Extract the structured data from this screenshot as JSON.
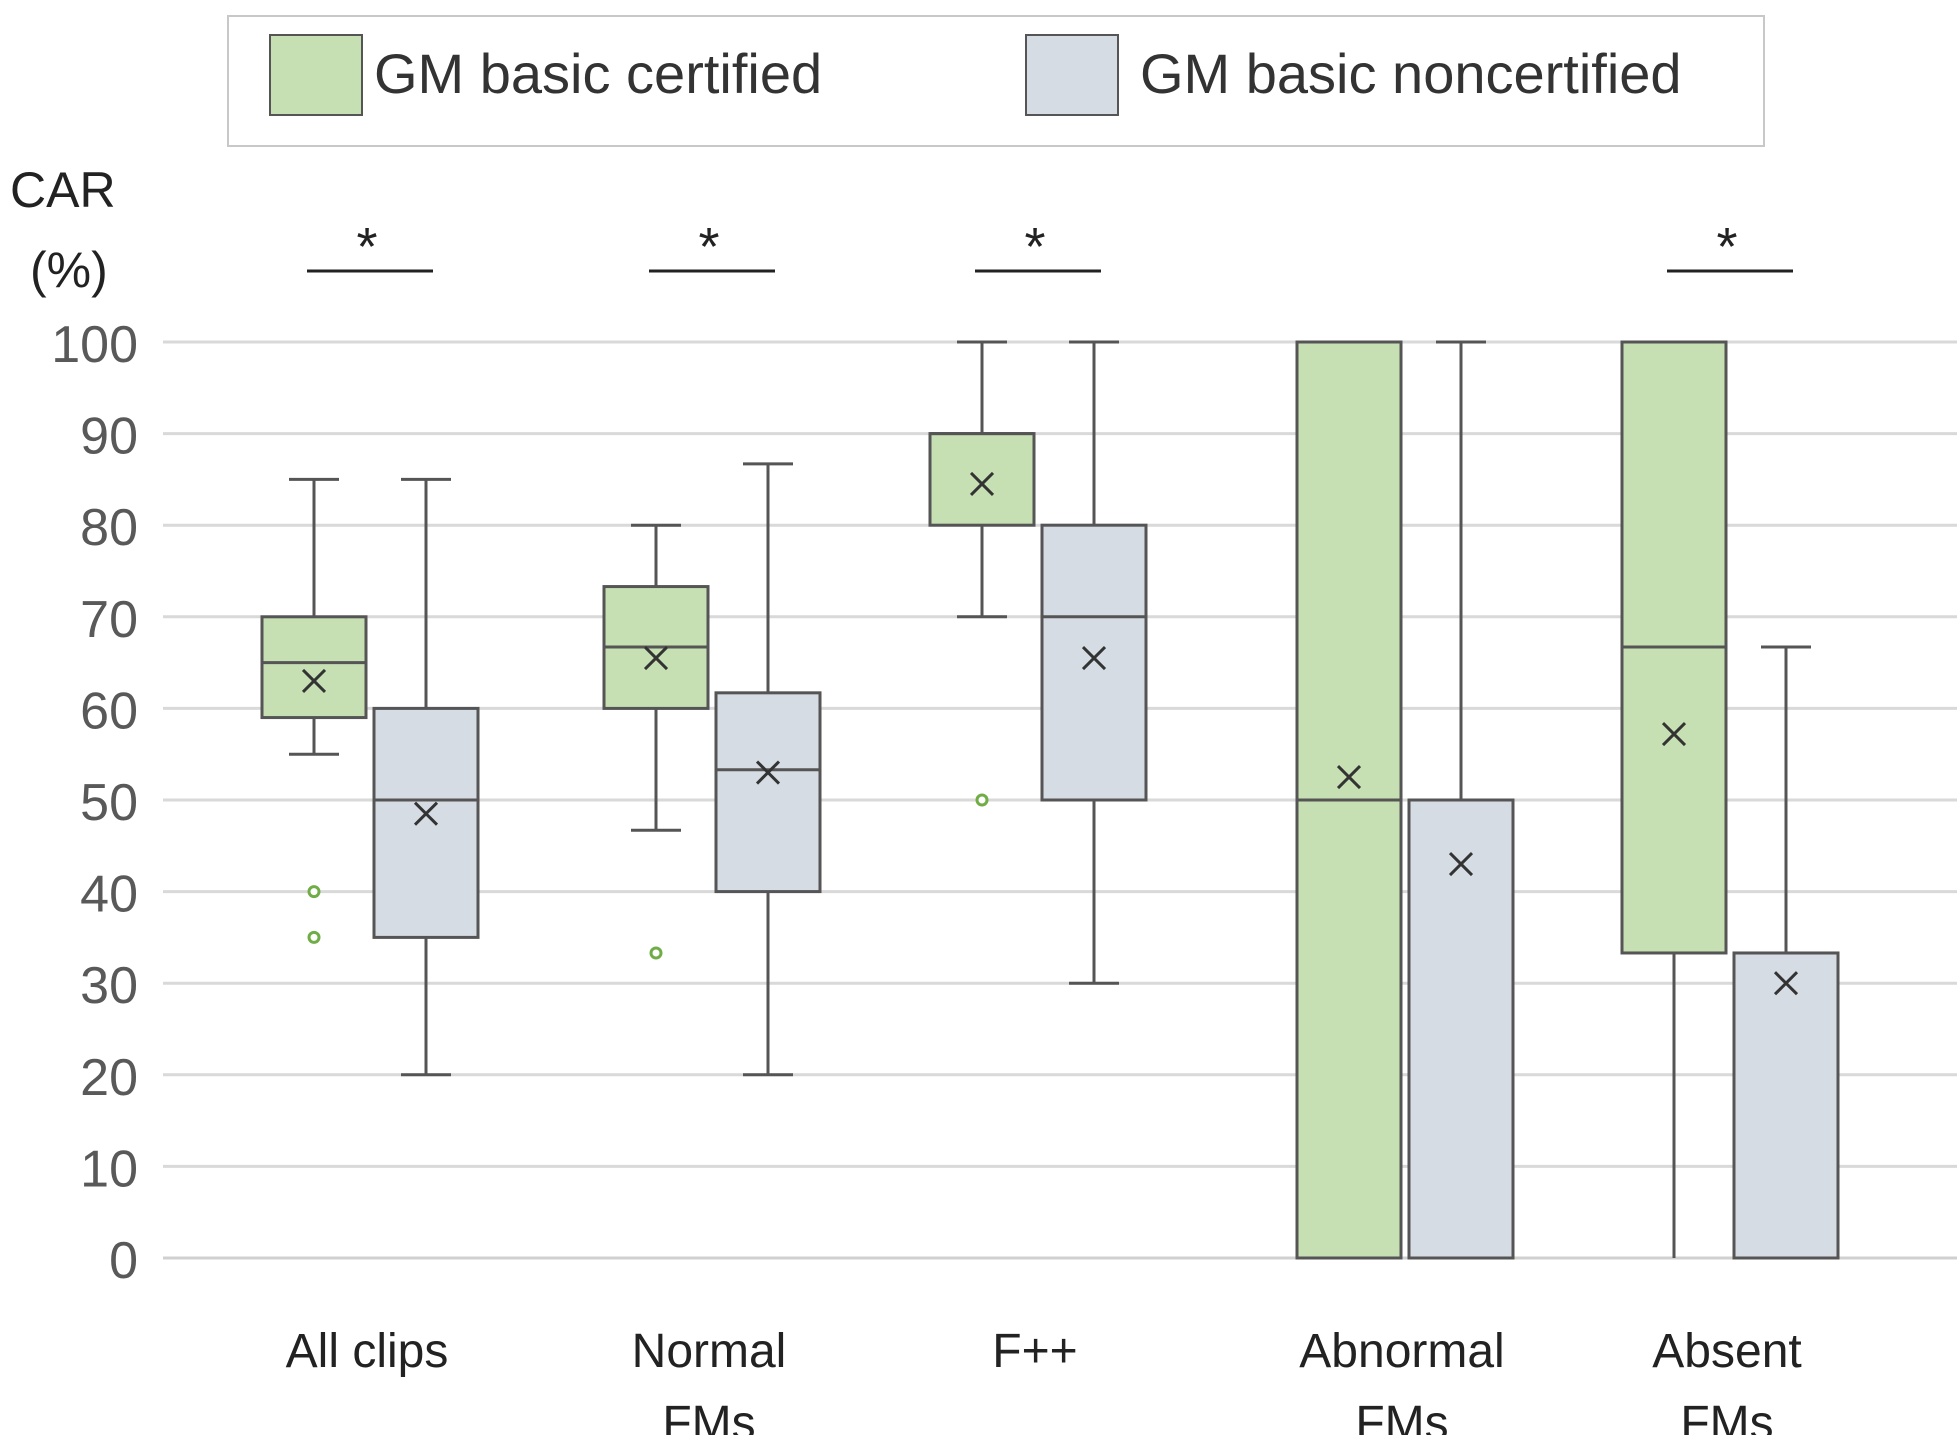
{
  "chart_data": {
    "type": "box",
    "title": "",
    "ylabel_line1": "CAR",
    "ylabel_line2": "(%)",
    "xlabel": "",
    "ylim": [
      0,
      100
    ],
    "yticks": [
      0,
      10,
      20,
      30,
      40,
      50,
      60,
      70,
      80,
      90,
      100
    ],
    "grid": true,
    "legend_position": "top",
    "colors": {
      "certified_fill": "#c6e0b4",
      "noncertified_fill": "#d6dce4",
      "box_stroke": "#555555",
      "grid": "#d9d9d9",
      "outlier_certified": "#70ad47",
      "axis_text": "#595959"
    },
    "series": [
      {
        "name": "GM basic certified",
        "key": "certified"
      },
      {
        "name": "GM basic noncertified",
        "key": "noncertified"
      }
    ],
    "categories": [
      {
        "label_lines": [
          "All clips"
        ],
        "significant": true,
        "significance_mark": "*",
        "boxes": [
          {
            "series": "certified",
            "min": 55,
            "q1": 59,
            "median": 65,
            "q3": 70,
            "max": 85,
            "mean": 63,
            "outliers": [
              40,
              35
            ]
          },
          {
            "series": "noncertified",
            "min": 20,
            "q1": 35,
            "median": 50,
            "q3": 60,
            "max": 85,
            "mean": 48.5,
            "outliers": []
          }
        ]
      },
      {
        "label_lines": [
          "Normal",
          "FMs"
        ],
        "significant": true,
        "significance_mark": "*",
        "boxes": [
          {
            "series": "certified",
            "min": 46.7,
            "q1": 60,
            "median": 66.7,
            "q3": 73.3,
            "max": 80,
            "mean": 65.5,
            "outliers": [
              33.3
            ]
          },
          {
            "series": "noncertified",
            "min": 20,
            "q1": 40,
            "median": 53.3,
            "q3": 61.7,
            "max": 86.7,
            "mean": 53,
            "outliers": []
          }
        ]
      },
      {
        "label_lines": [
          "F++"
        ],
        "significant": true,
        "significance_mark": "*",
        "boxes": [
          {
            "series": "certified",
            "min": 70,
            "q1": 80,
            "median": 90,
            "q3": 90,
            "max": 100,
            "mean": 84.5,
            "outliers": [
              50
            ]
          },
          {
            "series": "noncertified",
            "min": 30,
            "q1": 50,
            "median": 70,
            "q3": 80,
            "max": 100,
            "mean": 65.5,
            "outliers": []
          }
        ]
      },
      {
        "label_lines": [
          "Abnormal",
          "FMs"
        ],
        "significant": false,
        "significance_mark": "",
        "boxes": [
          {
            "series": "certified",
            "min": 0,
            "q1": 0,
            "median": 50,
            "q3": 100,
            "max": 100,
            "mean": 52.5,
            "outliers": []
          },
          {
            "series": "noncertified",
            "min": 0,
            "q1": 0,
            "median": 50,
            "q3": 50,
            "max": 100,
            "mean": 43,
            "outliers": []
          }
        ]
      },
      {
        "label_lines": [
          "Absent",
          "FMs"
        ],
        "significant": true,
        "significance_mark": "*",
        "boxes": [
          {
            "series": "certified",
            "min": 0,
            "q1": 33.3,
            "median": 66.7,
            "q3": 100,
            "max": 100,
            "mean": 57.2,
            "outliers": []
          },
          {
            "series": "noncertified",
            "min": 0,
            "q1": 0,
            "median": 33.3,
            "q3": 33.3,
            "max": 66.7,
            "mean": 30,
            "outliers": []
          }
        ]
      }
    ]
  }
}
